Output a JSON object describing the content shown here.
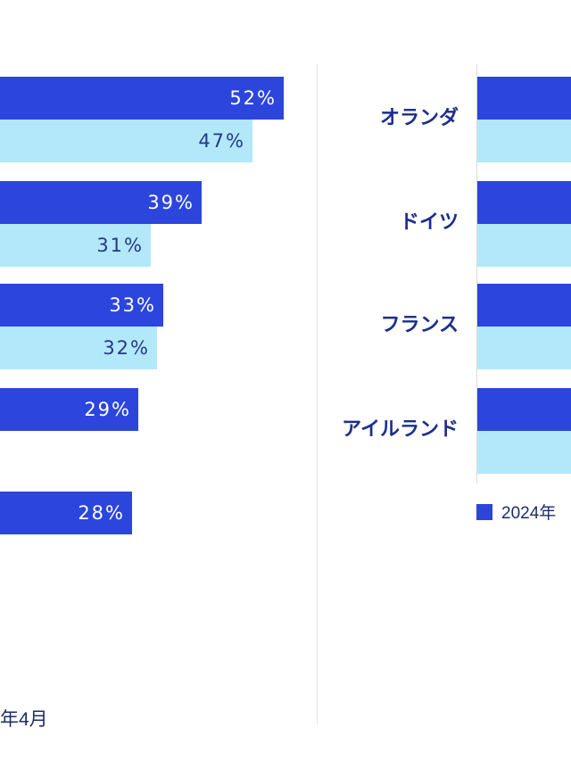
{
  "colors": {
    "dark": "#2b45dd",
    "light": "#b3e8fb",
    "dark_text": "#ffffff",
    "light_text": "#233a86",
    "label": "#1d2e8a"
  },
  "chart_data": [
    {
      "type": "bar",
      "orientation": "horizontal",
      "categories": [
        "",
        "",
        "",
        "",
        ""
      ],
      "series": [
        {
          "values": [
            52,
            39,
            33,
            29,
            28
          ]
        },
        {
          "values": [
            47,
            31,
            32,
            null,
            null
          ]
        }
      ],
      "value_labels": [
        [
          "52%",
          "39%",
          "33%",
          "29%",
          "28%"
        ],
        [
          "47%",
          "31%",
          "32%",
          "",
          ""
        ]
      ]
    },
    {
      "type": "bar",
      "orientation": "horizontal",
      "categories": [
        "オランダ",
        "ドイツ",
        "フランス",
        "アイルランド"
      ],
      "series": [
        {
          "name": "2024年",
          "values": [
            null,
            null,
            null,
            null
          ]
        },
        {
          "values": [
            null,
            null,
            null,
            null
          ]
        }
      ],
      "legend": [
        "2024年"
      ]
    }
  ],
  "footnote": "年4月",
  "legend_label": "2024年"
}
